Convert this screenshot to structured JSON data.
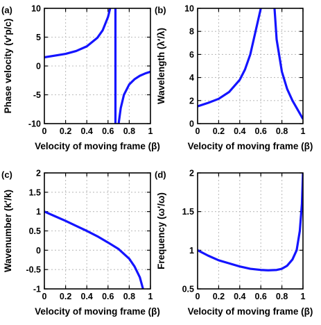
{
  "colors": {
    "series": "#1414ff",
    "axis": "#000000",
    "grid": "#bdbdbd"
  },
  "chart_data": [
    {
      "type": "line",
      "panel_label": "(a)",
      "xlabel": "Velocity of moving frame (β)",
      "ylabel": "Phase velocity (v′p/c)",
      "xlim": [
        0,
        1
      ],
      "ylim": [
        -10,
        10
      ],
      "xticks": [
        "0",
        "0.2",
        "0.4",
        "0.6",
        "0.8",
        "1"
      ],
      "yticks": [
        "-10",
        "-5",
        "0",
        "5",
        "10"
      ],
      "grid": true,
      "series": [
        {
          "x": [
            0,
            0.1,
            0.2,
            0.3,
            0.4,
            0.5,
            0.55,
            0.6,
            0.62
          ],
          "y": [
            1.5,
            1.8,
            2.1,
            2.6,
            3.4,
            4.9,
            6.2,
            8.5,
            10
          ]
        },
        {
          "x": [
            0.67,
            0.67
          ],
          "y": [
            10,
            -10
          ]
        },
        {
          "x": [
            0.7,
            0.72,
            0.75,
            0.8,
            0.85,
            0.9,
            0.95,
            1.0
          ],
          "y": [
            -10,
            -7.3,
            -5.0,
            -3.2,
            -2.3,
            -1.7,
            -1.3,
            -1.0
          ]
        }
      ]
    },
    {
      "type": "line",
      "panel_label": "(b)",
      "xlabel": "Velocity of moving frame (β)",
      "ylabel": "Wavelength (λ′/λ)",
      "xlim": [
        0,
        1
      ],
      "ylim": [
        0,
        10
      ],
      "xticks": [
        "0",
        "0.2",
        "0.4",
        "0.6",
        "0.8",
        "1"
      ],
      "yticks": [
        "0",
        "2",
        "4",
        "6",
        "8",
        "10"
      ],
      "grid": true,
      "series": [
        {
          "x": [
            0,
            0.1,
            0.2,
            0.3,
            0.4,
            0.45,
            0.5,
            0.55,
            0.6
          ],
          "y": [
            1.5,
            1.8,
            2.15,
            2.75,
            3.8,
            4.7,
            6.0,
            8.0,
            10
          ]
        },
        {
          "x": [
            0.73,
            0.75,
            0.8,
            0.85,
            0.9,
            0.95,
            1.0
          ],
          "y": [
            10,
            7.3,
            4.5,
            3.0,
            2.0,
            1.2,
            0.4
          ]
        }
      ]
    },
    {
      "type": "line",
      "panel_label": "(c)",
      "xlabel": "Velocity of moving frame (β)",
      "ylabel": "Wavenumber (k′/k)",
      "xlim": [
        0,
        1
      ],
      "ylim": [
        -1,
        2
      ],
      "xticks": [
        "0",
        "0.2",
        "0.4",
        "0.6",
        "0.8",
        "1"
      ],
      "yticks": [
        "-1",
        "-0.5",
        "0",
        "0.5",
        "1",
        "1.5",
        "2"
      ],
      "grid": true,
      "series": [
        {
          "x": [
            0,
            0.1,
            0.2,
            0.3,
            0.4,
            0.5,
            0.6,
            0.7,
            0.8,
            0.85,
            0.9,
            0.93
          ],
          "y": [
            1.0,
            0.88,
            0.76,
            0.63,
            0.5,
            0.36,
            0.2,
            0.03,
            -0.22,
            -0.42,
            -0.7,
            -1.0
          ]
        }
      ]
    },
    {
      "type": "line",
      "panel_label": "(d)",
      "xlabel": "Velocity of moving frame (β)",
      "ylabel": "Frequency (ω′/ω)",
      "xlim": [
        0,
        1
      ],
      "ylim": [
        0.5,
        2
      ],
      "xticks": [
        "0",
        "0.2",
        "0.4",
        "0.6",
        "0.8",
        "1"
      ],
      "yticks": [
        "0.5",
        "1",
        "1.5",
        "2"
      ],
      "grid": true,
      "series": [
        {
          "x": [
            0,
            0.1,
            0.2,
            0.3,
            0.4,
            0.5,
            0.6,
            0.67,
            0.75,
            0.8,
            0.85,
            0.9,
            0.94,
            0.97,
            0.99,
            1.0
          ],
          "y": [
            1.0,
            0.93,
            0.87,
            0.83,
            0.79,
            0.76,
            0.745,
            0.74,
            0.745,
            0.76,
            0.8,
            0.88,
            1.0,
            1.25,
            1.6,
            2.0
          ]
        }
      ]
    }
  ]
}
